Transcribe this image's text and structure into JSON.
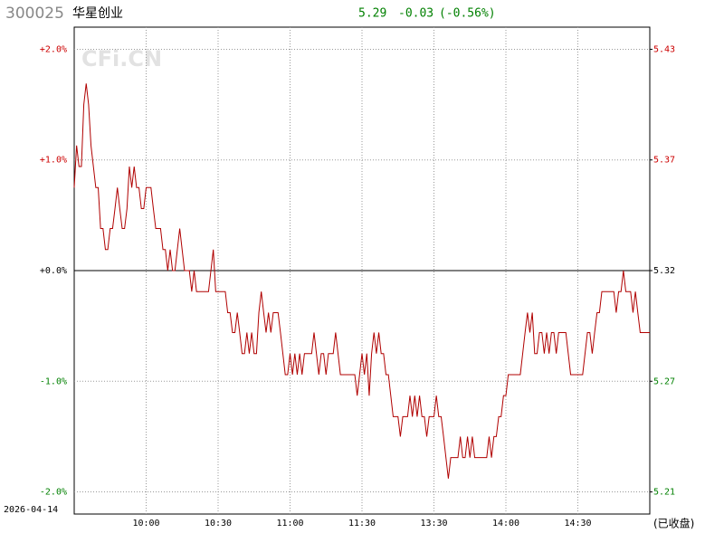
{
  "chart_data": {
    "type": "line",
    "header": {
      "code": "300025",
      "name": "华星创业",
      "price": "5.29",
      "change": "-0.03",
      "change_pct": "(-0.56%)"
    },
    "watermark": "CFi.CN",
    "date": "2026-04-14",
    "status": "(已收盘)",
    "color": "#b00000",
    "up_color": "#cc0000",
    "down_color": "#008000",
    "zero_color": "#000000",
    "grid": true,
    "xlim": [
      0,
      240
    ],
    "xticks": [
      {
        "value": 30,
        "label": "10:00"
      },
      {
        "value": 60,
        "label": "10:30"
      },
      {
        "value": 90,
        "label": "11:00"
      },
      {
        "value": 120,
        "label": "11:30"
      },
      {
        "value": 150,
        "label": "13:30"
      },
      {
        "value": 180,
        "label": "14:00"
      },
      {
        "value": 210,
        "label": "14:30"
      }
    ],
    "ylim": [
      -2.2,
      2.2
    ],
    "yticks": [
      {
        "value": 2,
        "label": "+2.0%"
      },
      {
        "value": 1,
        "label": "+1.0%"
      },
      {
        "value": 0,
        "label": "+0.0%"
      },
      {
        "value": -1,
        "label": "-1.0%"
      },
      {
        "value": -2,
        "label": "-2.0%"
      }
    ],
    "y2lim": [
      5.20296,
      5.43704
    ],
    "y2ticks": [
      {
        "value": 5.4264,
        "label": "5.43"
      },
      {
        "value": 5.3732,
        "label": "5.37"
      },
      {
        "value": 5.32,
        "label": "5.32"
      },
      {
        "value": 5.2668,
        "label": "5.27"
      },
      {
        "value": 5.2136,
        "label": "5.21"
      }
    ],
    "x": [
      0,
      1,
      2,
      3,
      4,
      5,
      6,
      7,
      8,
      9,
      10,
      11,
      12,
      13,
      14,
      15,
      16,
      17,
      18,
      19,
      20,
      21,
      22,
      23,
      24,
      25,
      26,
      27,
      28,
      29,
      30,
      31,
      32,
      33,
      34,
      35,
      36,
      37,
      38,
      39,
      40,
      41,
      42,
      43,
      44,
      45,
      46,
      47,
      48,
      49,
      50,
      51,
      52,
      53,
      54,
      55,
      56,
      57,
      58,
      59,
      60,
      61,
      62,
      63,
      64,
      65,
      66,
      67,
      68,
      69,
      70,
      71,
      72,
      73,
      74,
      75,
      76,
      77,
      78,
      79,
      80,
      81,
      82,
      83,
      84,
      85,
      86,
      87,
      88,
      89,
      90,
      91,
      92,
      93,
      94,
      95,
      96,
      97,
      98,
      99,
      100,
      101,
      102,
      103,
      104,
      105,
      106,
      107,
      108,
      109,
      110,
      111,
      112,
      113,
      114,
      115,
      116,
      117,
      118,
      119,
      120,
      121,
      122,
      123,
      124,
      125,
      126,
      127,
      128,
      129,
      130,
      131,
      132,
      133,
      134,
      135,
      136,
      137,
      138,
      139,
      140,
      141,
      142,
      143,
      144,
      145,
      146,
      147,
      148,
      149,
      150,
      151,
      152,
      153,
      154,
      155,
      156,
      157,
      158,
      159,
      160,
      161,
      162,
      163,
      164,
      165,
      166,
      167,
      168,
      169,
      170,
      171,
      172,
      173,
      174,
      175,
      176,
      177,
      178,
      179,
      180,
      181,
      182,
      183,
      184,
      185,
      186,
      187,
      188,
      189,
      190,
      191,
      192,
      193,
      194,
      195,
      196,
      197,
      198,
      199,
      200,
      201,
      202,
      203,
      204,
      205,
      206,
      207,
      208,
      209,
      210,
      211,
      212,
      213,
      214,
      215,
      216,
      217,
      218,
      219,
      220,
      221,
      222,
      223,
      224,
      225,
      226,
      227,
      228,
      229,
      230,
      231,
      232,
      233,
      234,
      235,
      236,
      237,
      238,
      239,
      240
    ],
    "values": [
      0.75,
      1.13,
      0.94,
      0.94,
      1.5,
      1.69,
      1.5,
      1.13,
      0.94,
      0.75,
      0.75,
      0.38,
      0.38,
      0.19,
      0.19,
      0.38,
      0.38,
      0.56,
      0.75,
      0.56,
      0.38,
      0.38,
      0.56,
      0.94,
      0.75,
      0.94,
      0.75,
      0.75,
      0.56,
      0.56,
      0.75,
      0.75,
      0.75,
      0.56,
      0.38,
      0.38,
      0.38,
      0.19,
      0.19,
      0,
      0.19,
      0,
      0,
      0.19,
      0.38,
      0.19,
      0,
      0,
      0,
      -0.19,
      0,
      -0.19,
      -0.19,
      -0.19,
      -0.19,
      -0.19,
      -0.19,
      0,
      0.19,
      -0.19,
      -0.19,
      -0.19,
      -0.19,
      -0.19,
      -0.38,
      -0.38,
      -0.56,
      -0.56,
      -0.38,
      -0.56,
      -0.75,
      -0.75,
      -0.56,
      -0.75,
      -0.56,
      -0.75,
      -0.75,
      -0.38,
      -0.19,
      -0.38,
      -0.56,
      -0.38,
      -0.56,
      -0.38,
      -0.38,
      -0.38,
      -0.56,
      -0.75,
      -0.94,
      -0.94,
      -0.75,
      -0.94,
      -0.75,
      -0.94,
      -0.75,
      -0.94,
      -0.75,
      -0.75,
      -0.75,
      -0.75,
      -0.56,
      -0.75,
      -0.94,
      -0.75,
      -0.75,
      -0.94,
      -0.75,
      -0.75,
      -0.75,
      -0.56,
      -0.75,
      -0.94,
      -0.94,
      -0.94,
      -0.94,
      -0.94,
      -0.94,
      -0.94,
      -1.13,
      -0.94,
      -0.75,
      -0.94,
      -0.75,
      -1.13,
      -0.75,
      -0.56,
      -0.75,
      -0.56,
      -0.75,
      -0.75,
      -0.94,
      -0.94,
      -1.13,
      -1.32,
      -1.32,
      -1.32,
      -1.5,
      -1.32,
      -1.32,
      -1.32,
      -1.13,
      -1.32,
      -1.13,
      -1.32,
      -1.13,
      -1.32,
      -1.32,
      -1.5,
      -1.32,
      -1.32,
      -1.32,
      -1.13,
      -1.32,
      -1.32,
      -1.5,
      -1.69,
      -1.88,
      -1.69,
      -1.69,
      -1.69,
      -1.69,
      -1.5,
      -1.69,
      -1.69,
      -1.5,
      -1.69,
      -1.5,
      -1.69,
      -1.69,
      -1.69,
      -1.69,
      -1.69,
      -1.69,
      -1.5,
      -1.69,
      -1.5,
      -1.5,
      -1.32,
      -1.32,
      -1.13,
      -1.13,
      -0.94,
      -0.94,
      -0.94,
      -0.94,
      -0.94,
      -0.94,
      -0.75,
      -0.56,
      -0.38,
      -0.56,
      -0.38,
      -0.75,
      -0.75,
      -0.56,
      -0.56,
      -0.75,
      -0.56,
      -0.75,
      -0.56,
      -0.56,
      -0.75,
      -0.56,
      -0.56,
      -0.56,
      -0.56,
      -0.75,
      -0.94,
      -0.94,
      -0.94,
      -0.94,
      -0.94,
      -0.94,
      -0.75,
      -0.56,
      -0.56,
      -0.75,
      -0.56,
      -0.38,
      -0.38,
      -0.19,
      -0.19,
      -0.19,
      -0.19,
      -0.19,
      -0.19,
      -0.38,
      -0.19,
      -0.19,
      0,
      -0.19,
      -0.19,
      -0.19,
      -0.38,
      -0.19,
      -0.38,
      -0.56,
      -0.56,
      -0.56,
      -0.56,
      -0.56
    ]
  }
}
